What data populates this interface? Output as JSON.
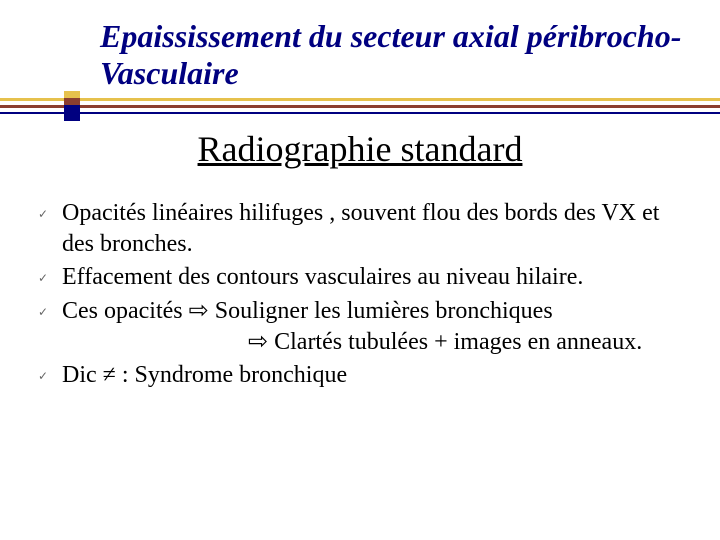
{
  "colors": {
    "title": "#000080",
    "gold": "#e6c14c",
    "brown": "#8b3e2f",
    "navy": "#000080",
    "body_text": "#000000",
    "check": "#666666",
    "background": "#ffffff"
  },
  "fonts": {
    "title_family": "Comic Sans MS",
    "title_size_pt": 32,
    "subtitle_size_pt": 36,
    "body_size_pt": 24
  },
  "title": "Epaississement du secteur axial péribrocho-Vasculaire",
  "subtitle": "Radiographie standard",
  "bullets": [
    {
      "text": "Opacités linéaires hilifuges , souvent flou des bords des VX et des bronches."
    },
    {
      "text": "Effacement des contours vasculaires au niveau hilaire."
    },
    {
      "text": " Ces opacités ⇨ Souligner les lumières bronchiques",
      "sub": "⇨ Clartés tubulées + images en anneaux."
    },
    {
      "text": " Dic ≠  : Syndrome bronchique"
    }
  ]
}
